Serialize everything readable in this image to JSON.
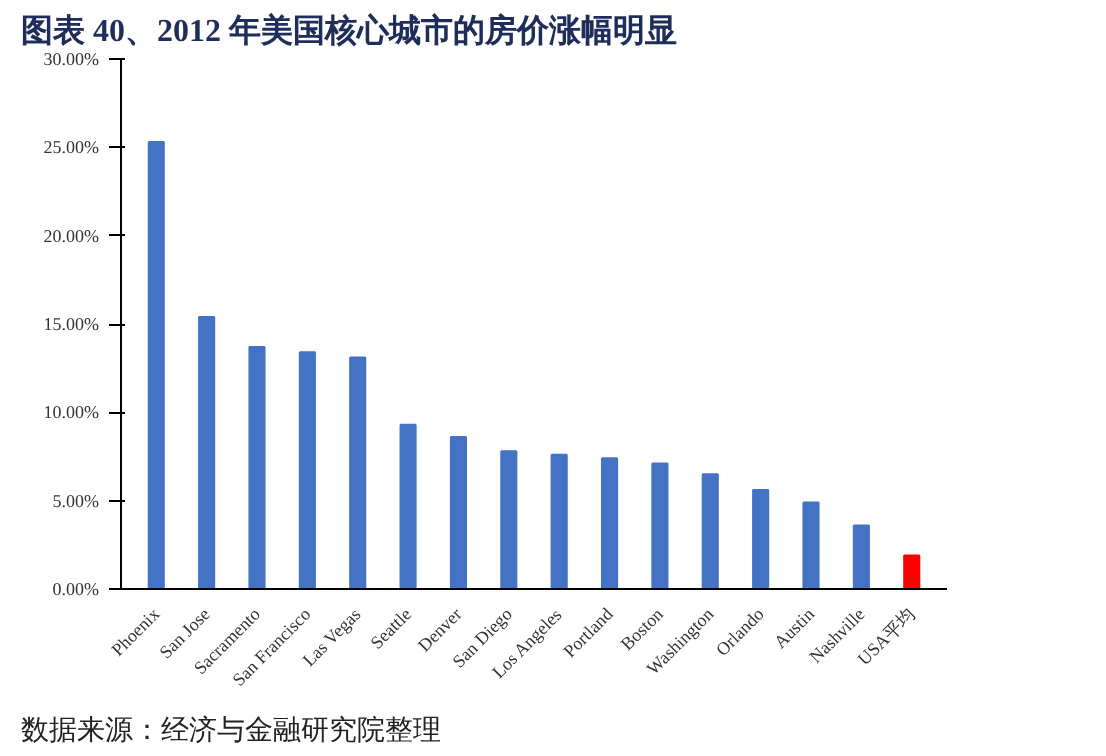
{
  "chart_data": {
    "type": "bar",
    "title": "图表 40、2012 年美国核心城市的房价涨幅明显",
    "categories": [
      "Phoenix",
      "San Jose",
      "Sacramento",
      "San Francisco",
      "Las Vegas",
      "Seattle",
      "Denver",
      "San Diego",
      "Los Angeles",
      "Portland",
      "Boston",
      "Washington",
      "Orlando",
      "Austin",
      "Nashville",
      "USA平均"
    ],
    "values": [
      25.3,
      15.4,
      13.7,
      13.4,
      13.1,
      9.3,
      8.6,
      7.8,
      7.6,
      7.4,
      7.1,
      6.5,
      5.6,
      4.9,
      3.6,
      1.9
    ],
    "colors": [
      "#4472c4",
      "#4472c4",
      "#4472c4",
      "#4472c4",
      "#4472c4",
      "#4472c4",
      "#4472c4",
      "#4472c4",
      "#4472c4",
      "#4472c4",
      "#4472c4",
      "#4472c4",
      "#4472c4",
      "#4472c4",
      "#4472c4",
      "#ff0000"
    ],
    "ylim": [
      0,
      30
    ],
    "yticks": [
      {
        "value": 0,
        "label": "0.00%"
      },
      {
        "value": 5,
        "label": "5.00%"
      },
      {
        "value": 10,
        "label": "10.00%"
      },
      {
        "value": 15,
        "label": "15.00%"
      },
      {
        "value": 20,
        "label": "20.00%"
      },
      {
        "value": 25,
        "label": "25.00%"
      },
      {
        "value": 30,
        "label": "30.00%"
      }
    ],
    "grid": false,
    "annotations": [
      "数据来源：经济与金融研究院整理"
    ]
  }
}
